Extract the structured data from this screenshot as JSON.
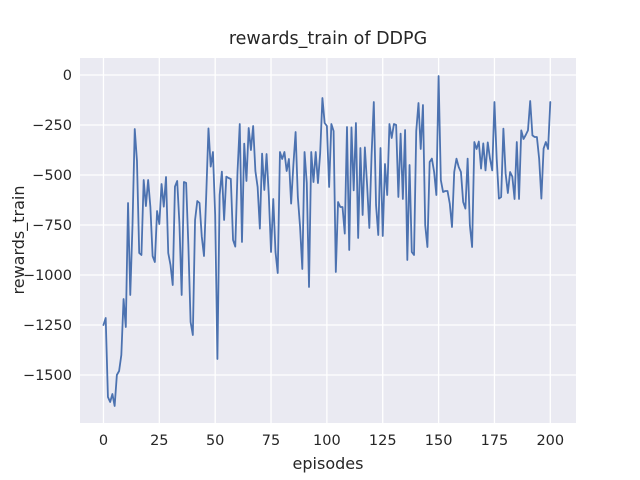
{
  "window": {
    "background": "#ffffff"
  },
  "chart_data": {
    "type": "line",
    "title": "rewards_train of DDPG",
    "xlabel": "episodes",
    "ylabel": "rewards_train",
    "legend": null,
    "grid": true,
    "style": "seaborn-darkgrid",
    "xlim": [
      -10.5,
      211.5
    ],
    "ylim": [
      -1740,
      85
    ],
    "xticks": [
      0,
      25,
      50,
      75,
      100,
      125,
      150,
      175,
      200
    ],
    "xtick_labels": [
      "0",
      "25",
      "50",
      "75",
      "100",
      "125",
      "150",
      "175",
      "200"
    ],
    "yticks": [
      0,
      -250,
      -500,
      -750,
      -1000,
      -1250,
      -1500
    ],
    "ytick_labels": [
      "0",
      "−250",
      "−500",
      "−750",
      "−1000",
      "−1250",
      "−1500"
    ],
    "x_start": 0,
    "x_step": 1,
    "values": [
      -1250,
      -1215,
      -1610,
      -1635,
      -1595,
      -1655,
      -1500,
      -1480,
      -1400,
      -1120,
      -1260,
      -640,
      -1100,
      -750,
      -270,
      -430,
      -890,
      -900,
      -525,
      -655,
      -525,
      -660,
      -905,
      -935,
      -680,
      -745,
      -545,
      -658,
      -510,
      -890,
      -950,
      -1050,
      -558,
      -530,
      -742,
      -1100,
      -535,
      -540,
      -850,
      -1235,
      -1300,
      -725,
      -630,
      -640,
      -808,
      -905,
      -600,
      -267,
      -458,
      -385,
      -700,
      -1420,
      -600,
      -483,
      -725,
      -508,
      -515,
      -520,
      -825,
      -858,
      -485,
      -245,
      -835,
      -343,
      -530,
      -265,
      -375,
      -255,
      -480,
      -560,
      -768,
      -393,
      -575,
      -395,
      -600,
      -885,
      -620,
      -885,
      -990,
      -385,
      -420,
      -385,
      -480,
      -420,
      -643,
      -450,
      -285,
      -610,
      -760,
      -970,
      -385,
      -540,
      -1060,
      -385,
      -535,
      -385,
      -540,
      -390,
      -115,
      -240,
      -255,
      -560,
      -245,
      -280,
      -985,
      -635,
      -660,
      -660,
      -793,
      -260,
      -875,
      -262,
      -577,
      -240,
      -815,
      -365,
      -700,
      -362,
      -550,
      -765,
      -400,
      -135,
      -650,
      -800,
      -365,
      -805,
      -445,
      -600,
      -245,
      -315,
      -245,
      -250,
      -610,
      -293,
      -620,
      -275,
      -925,
      -450,
      -885,
      -900,
      -280,
      -140,
      -370,
      -150,
      -750,
      -860,
      -435,
      -418,
      -485,
      -600,
      -5,
      -525,
      -585,
      -580,
      -580,
      -643,
      -760,
      -485,
      -418,
      -460,
      -485,
      -635,
      -668,
      -418,
      -752,
      -860,
      -335,
      -370,
      -333,
      -468,
      -342,
      -477,
      -337,
      -418,
      -477,
      -135,
      -418,
      -618,
      -610,
      -268,
      -493,
      -590,
      -485,
      -508,
      -620,
      -335,
      -620,
      -277,
      -320,
      -300,
      -277,
      -130,
      -302,
      -310,
      -310,
      -418,
      -618,
      -368,
      -335,
      -370,
      -135
    ],
    "colors": {
      "line": "#4C72B0",
      "axes_background": "#EAEAF2",
      "grid": "#FFFFFF",
      "text": "#262626",
      "figure_background": "#FFFFFF"
    }
  }
}
